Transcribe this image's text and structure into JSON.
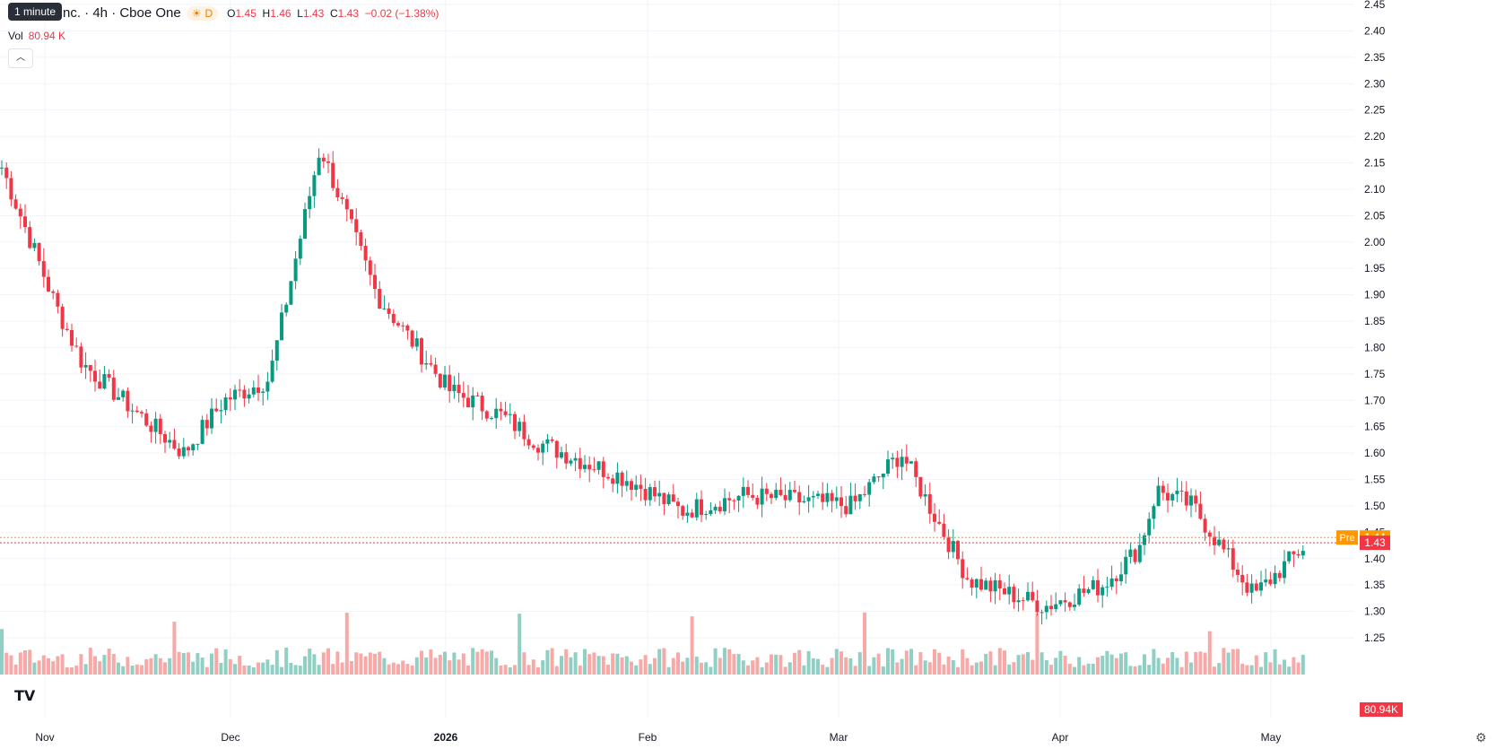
{
  "legend": {
    "symbol": "nc. · 4h · Cboe One",
    "session_icon": "sun-icon",
    "session_letter": "D",
    "o_label": "O",
    "o": "1.45",
    "h_label": "H",
    "h": "1.46",
    "l_label": "L",
    "l": "1.43",
    "c_label": "C",
    "c": "1.43",
    "change": "−0.02 (−1.38%)"
  },
  "tooltip": "1 minute",
  "volume": {
    "label": "Vol",
    "value": "80.94 K",
    "badge": "80.94K"
  },
  "price_tags": {
    "pre_label": "Pre",
    "pre_value": "1.44",
    "last_value": "1.43"
  },
  "colors": {
    "up": "#089981",
    "down": "#f23645",
    "up_vol": "#8fcfc4",
    "down_vol": "#f7a9a7",
    "pre": "#ff9800"
  },
  "chart_data": {
    "type": "candlestick",
    "y_ticks": [
      "2.45",
      "2.40",
      "2.35",
      "2.30",
      "2.25",
      "2.20",
      "2.15",
      "2.10",
      "2.05",
      "2.00",
      "1.95",
      "1.90",
      "1.85",
      "1.80",
      "1.75",
      "1.70",
      "1.65",
      "1.60",
      "1.55",
      "1.50",
      "1.45",
      "1.40",
      "1.35",
      "1.30",
      "1.25"
    ],
    "ylim": [
      1.2,
      2.45
    ],
    "x_ticks": [
      "Nov",
      "Dec",
      "2026",
      "Feb",
      "Mar",
      "Apr",
      "May"
    ],
    "grid": true,
    "anchors": [
      {
        "x": "Nov",
        "close": 2.15
      },
      {
        "x": "Nov",
        "close": 1.88
      },
      {
        "x": "Nov",
        "close": 1.77
      },
      {
        "x": "Nov",
        "close": 1.68
      },
      {
        "x": "Dec",
        "close": 1.6
      },
      {
        "x": "Dec",
        "close": 1.7
      },
      {
        "x": "Dec",
        "close": 1.74
      },
      {
        "x": "Dec",
        "close": 2.18
      },
      {
        "x": "Dec",
        "close": 1.9
      },
      {
        "x": "2026",
        "close": 1.72
      },
      {
        "x": "2026",
        "close": 1.67
      },
      {
        "x": "2026",
        "close": 1.62
      },
      {
        "x": "Feb",
        "close": 1.55
      },
      {
        "x": "Feb",
        "close": 1.49
      },
      {
        "x": "Feb",
        "close": 1.52
      },
      {
        "x": "Mar",
        "close": 1.5
      },
      {
        "x": "Mar",
        "close": 1.6
      },
      {
        "x": "Mar",
        "close": 1.36
      },
      {
        "x": "Apr",
        "close": 1.31
      },
      {
        "x": "Apr",
        "close": 1.35
      },
      {
        "x": "Apr",
        "close": 1.42
      },
      {
        "x": "Apr",
        "close": 1.53
      },
      {
        "x": "Apr",
        "close": 1.5
      },
      {
        "x": "May",
        "close": 1.33
      },
      {
        "x": "May",
        "close": 1.43
      }
    ]
  }
}
